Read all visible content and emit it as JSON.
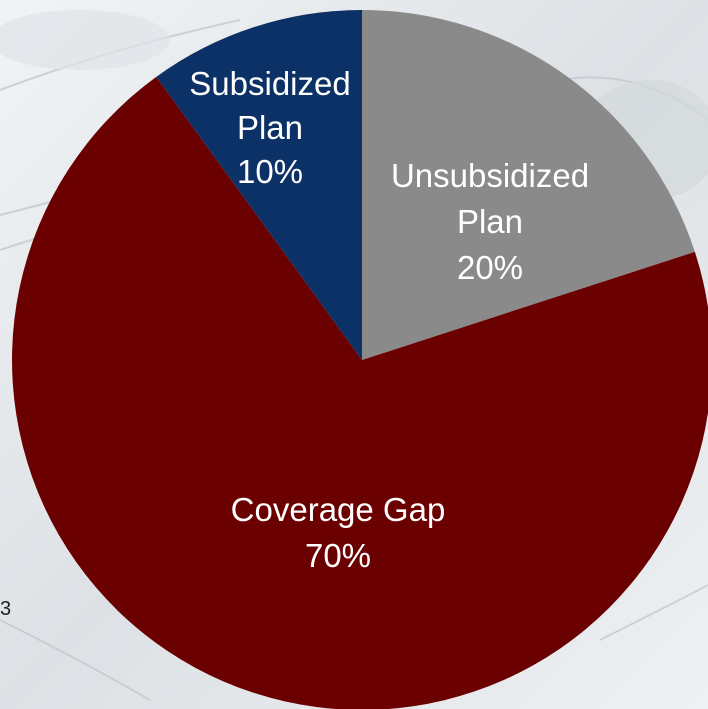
{
  "chart_data": {
    "type": "pie",
    "start_angle_deg": 0,
    "direction": "clockwise",
    "slices": [
      {
        "label": "Unsubsidized",
        "label2": "Plan",
        "percent_label": "20%",
        "value": 20,
        "color": "#8a8a8a"
      },
      {
        "label": "Coverage Gap",
        "label2": "",
        "percent_label": "70%",
        "value": 70,
        "color": "#6b0000"
      },
      {
        "label": "Subsidized",
        "label2": "Plan",
        "percent_label": "10%",
        "value": 10,
        "color": "#0b3166"
      }
    ]
  },
  "background": {
    "edge_glyph": "3"
  }
}
